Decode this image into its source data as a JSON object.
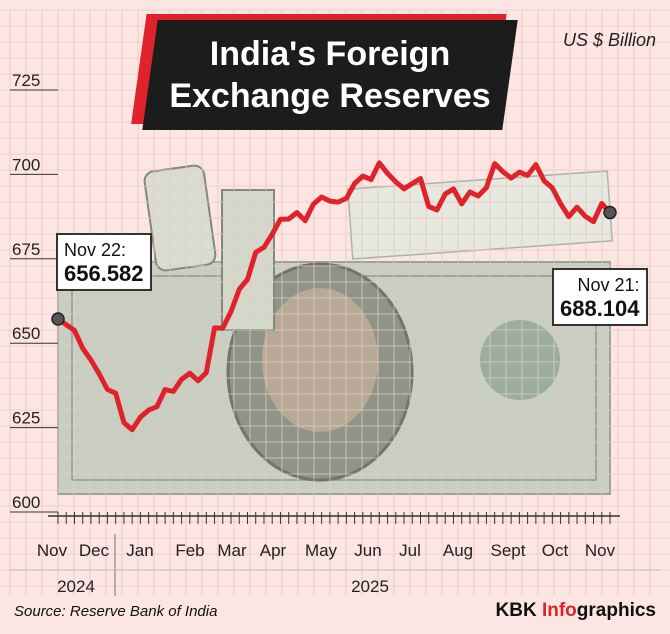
{
  "title": "India's Foreign Exchange Reserves",
  "unit": "US $ Billion",
  "source": "Source: Reserve Bank of India",
  "credit": {
    "prefix": "KBK ",
    "accent": "Info",
    "suffix": "graphics"
  },
  "callouts": {
    "start": {
      "label": "Nov 22:",
      "value": "656.582"
    },
    "end": {
      "label": "Nov 21:",
      "value": "688.104"
    }
  },
  "colors": {
    "line": "#e0232b",
    "accent": "#e0232b",
    "title_bg": "#1c1c1c",
    "background": "#fbe6e3"
  },
  "chart_data": {
    "type": "line",
    "ylim": [
      600,
      725
    ],
    "yticks": [
      600,
      625,
      650,
      675,
      700,
      725
    ],
    "grid": true,
    "month_labels": [
      "Nov",
      "Dec",
      "Jan",
      "Feb",
      "Mar",
      "Apr",
      "May",
      "Jun",
      "Jul",
      "Aug",
      "Sept",
      "Oct",
      "Nov"
    ],
    "year_labels": [
      "2024",
      "2025"
    ],
    "series": [
      {
        "values": [
          656.582,
          654.9,
          653.2,
          647.9,
          644.4,
          640.3,
          635.7,
          634.6,
          625.9,
          623.8,
          627.5,
          629.6,
          630.6,
          635.7,
          635.1,
          638.7,
          640.5,
          638.3,
          640.7,
          653.9,
          653.9,
          658.8,
          665.4,
          668.3,
          676.3,
          677.8,
          681.7,
          686.1,
          686.2,
          688.1,
          685.7,
          690.6,
          692.7,
          691.5,
          691.2,
          692.3,
          696.7,
          698.9,
          697.9,
          702.8,
          699.7,
          697.2,
          695.1,
          696.7,
          698.2,
          689.9,
          688.9,
          693.6,
          695.1,
          690.7,
          694.2,
          693.0,
          695.5,
          702.6,
          700.2,
          698.3,
          700.1,
          699.1,
          702.3,
          697.5,
          695.4,
          690.7,
          686.9,
          689.7,
          687.0,
          685.4,
          690.8,
          688.104
        ]
      }
    ]
  }
}
